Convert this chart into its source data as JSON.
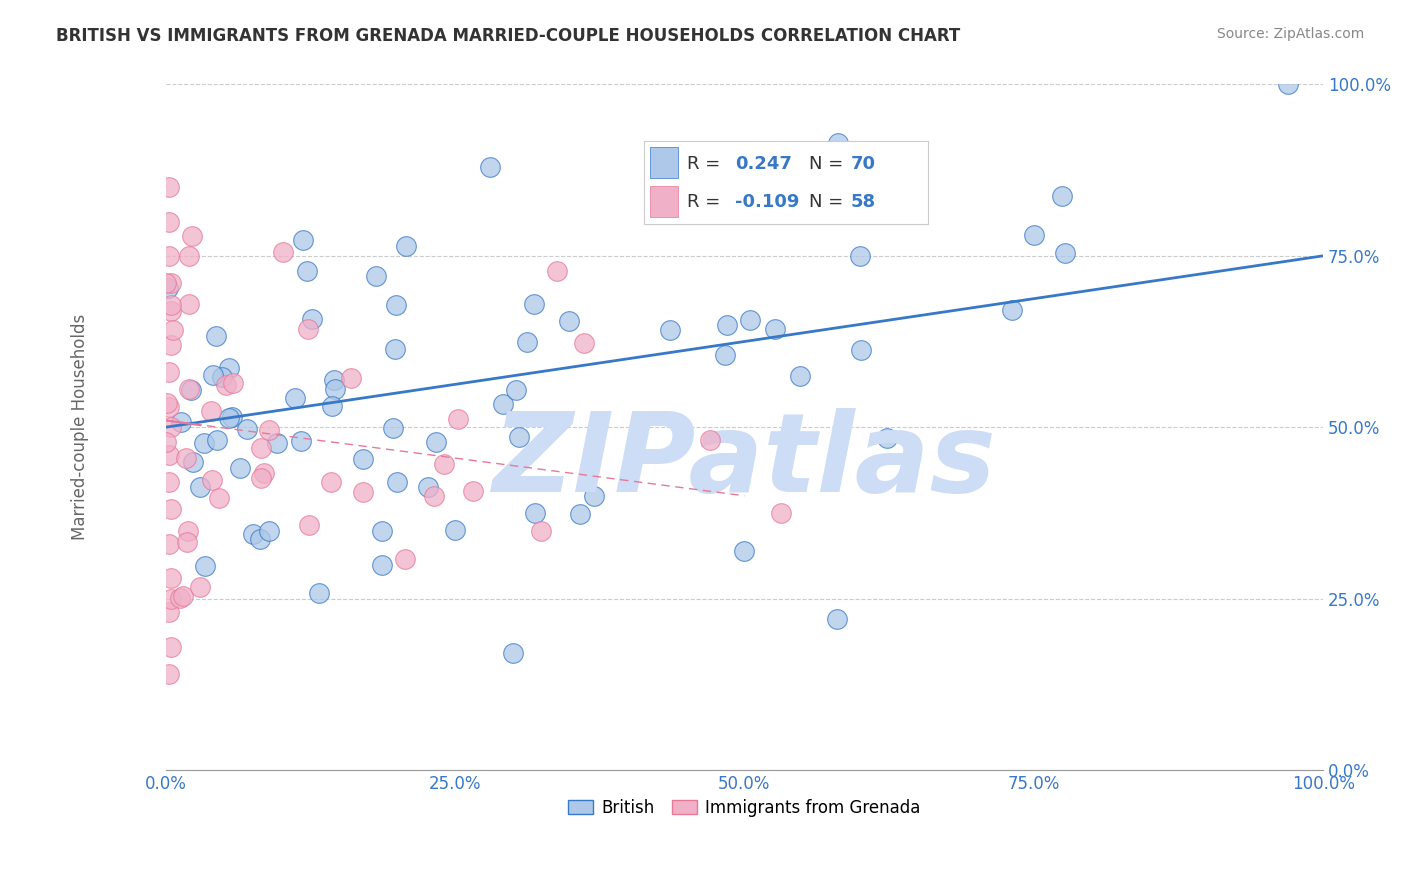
{
  "title": "BRITISH VS IMMIGRANTS FROM GRENADA MARRIED-COUPLE HOUSEHOLDS CORRELATION CHART",
  "source": "Source: ZipAtlas.com",
  "ylabel": "Married-couple Households",
  "x_ticks": [
    0.0,
    25.0,
    50.0,
    75.0,
    100.0
  ],
  "x_tick_labels": [
    "0.0%",
    "25.0%",
    "50.0%",
    "75.0%",
    "100.0%"
  ],
  "y_ticks": [
    0.0,
    25.0,
    50.0,
    75.0,
    100.0
  ],
  "y_tick_labels": [
    "0.0%",
    "25.0%",
    "50.0%",
    "75.0%",
    "100.0%"
  ],
  "xlim": [
    0.0,
    100.0
  ],
  "ylim": [
    0.0,
    100.0
  ],
  "british_R": 0.247,
  "british_N": 70,
  "grenada_R": -0.109,
  "grenada_N": 58,
  "british_color": "#adc8e8",
  "grenada_color": "#f0b0c8",
  "british_line_color": "#3878c8",
  "grenada_line_color": "#e87898",
  "watermark_color": "#ccddf5",
  "blue_line_x0": 0.0,
  "blue_line_y0": 50.0,
  "blue_line_x1": 100.0,
  "blue_line_y1": 75.0,
  "pink_line_x0": 0.0,
  "pink_line_y0": 51.0,
  "pink_line_x1": 50.0,
  "pink_line_y1": 40.0
}
